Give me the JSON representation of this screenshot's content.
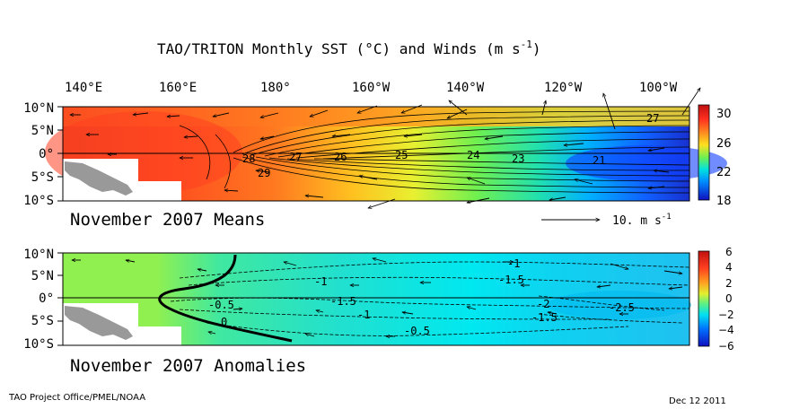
{
  "title_main": "TAO/TRITON Monthly SST (°C) and Winds (m s",
  "title_exp": "-1",
  "title_close": ")",
  "footer_left": "TAO Project Office/PMEL/NOAA",
  "footer_right": "Dec 12 2011",
  "colors": {
    "land": "#999999",
    "contour": "#000000",
    "scale": [
      "#1010c0",
      "#0050ff",
      "#00a0ff",
      "#00f0f0",
      "#30e0a0",
      "#90f050",
      "#e0f030",
      "#ffd020",
      "#ff9020",
      "#ff4020",
      "#d01010"
    ]
  },
  "chart_data": [
    {
      "type": "heatmap",
      "subtitle": "November 2007 Means",
      "lon_labels": [
        "140°E",
        "160°E",
        "180°",
        "160°W",
        "140°W",
        "120°W",
        "100°W"
      ],
      "lon_values": [
        140,
        160,
        180,
        200,
        220,
        240,
        260
      ],
      "lat_labels": [
        "10°N",
        "5°N",
        "0°",
        "5°S",
        "10°S"
      ],
      "lat_values": [
        10,
        5,
        0,
        -5,
        -10
      ],
      "colorbar": {
        "ticks": [
          30,
          26,
          22,
          18
        ],
        "tick_labels": [
          "30",
          "26",
          "22",
          "18"
        ],
        "range": [
          18,
          31
        ]
      },
      "contour_labels": [
        {
          "text": "28",
          "lon": 188,
          "lat": -1.5
        },
        {
          "text": "27",
          "lon": 198,
          "lat": -1
        },
        {
          "text": "26",
          "lon": 207,
          "lat": -1
        },
        {
          "text": "25",
          "lon": 222,
          "lat": -0.5
        },
        {
          "text": "24",
          "lon": 237,
          "lat": -0.5
        },
        {
          "text": "23",
          "lon": 247,
          "lat": -1
        },
        {
          "text": "21",
          "lon": 256,
          "lat": -1
        },
        {
          "text": "29",
          "lon": 183,
          "lat": -4.5
        },
        {
          "text": "27",
          "lon": 267,
          "lat": 6
        }
      ],
      "vector_scale_label": "10.  m s",
      "vector_scale_exp": "-1"
    },
    {
      "type": "heatmap",
      "subtitle": "November 2007 Anomalies",
      "lon_labels": [],
      "lat_labels": [
        "10°N",
        "5°N",
        "0°",
        "5°S",
        "10°S"
      ],
      "lat_values": [
        10,
        5,
        0,
        -5,
        -10
      ],
      "colorbar": {
        "ticks": [
          6,
          4,
          2,
          0,
          -2,
          -4,
          -6
        ],
        "tick_labels": [
          "6",
          "4",
          "2",
          "0",
          "−2",
          "−4",
          "−6"
        ],
        "range": [
          -6,
          6
        ]
      },
      "contour_labels": [
        {
          "text": "-1",
          "lon": 229,
          "lat": 8
        },
        {
          "text": "-1.5",
          "lon": 228,
          "lat": 4
        },
        {
          "text": "-1",
          "lon": 187,
          "lat": 3.5
        },
        {
          "text": "-1.5",
          "lon": 195,
          "lat": -1
        },
        {
          "text": "-1",
          "lon": 200,
          "lat": -4
        },
        {
          "text": "-0.5",
          "lon": 173,
          "lat": -2
        },
        {
          "text": "0",
          "lon": 173,
          "lat": -6
        },
        {
          "text": "-0.5",
          "lon": 214,
          "lat": -9
        },
        {
          "text": "-2",
          "lon": 244,
          "lat": -0.5
        },
        {
          "text": "-1.5",
          "lon": 246,
          "lat": -5
        },
        {
          "text": "-2.5",
          "lon": 258,
          "lat": -2
        }
      ]
    }
  ]
}
